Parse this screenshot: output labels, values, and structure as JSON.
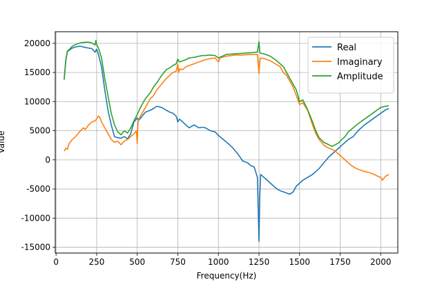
{
  "chart_data": {
    "type": "line",
    "title": "",
    "xlabel": "Frequency(Hz)",
    "ylabel": "Value",
    "xlim": [
      -5,
      2105
    ],
    "ylim": [
      -16000,
      22000
    ],
    "xticks": [
      0,
      250,
      500,
      750,
      1000,
      1250,
      1500,
      1750,
      2000
    ],
    "yticks": [
      -15000,
      -10000,
      -5000,
      0,
      5000,
      10000,
      15000,
      20000
    ],
    "grid": true,
    "legend": "top-right",
    "series": [
      {
        "name": "Real",
        "color": "#1f77b4",
        "x": [
          50,
          60,
          70,
          80,
          100,
          120,
          150,
          180,
          200,
          220,
          240,
          250,
          260,
          280,
          300,
          320,
          340,
          360,
          380,
          400,
          420,
          440,
          460,
          480,
          495,
          500,
          510,
          530,
          550,
          580,
          600,
          620,
          650,
          680,
          700,
          720,
          740,
          750,
          760,
          780,
          800,
          820,
          850,
          880,
          900,
          920,
          950,
          980,
          1000,
          1030,
          1060,
          1090,
          1120,
          1150,
          1180,
          1200,
          1220,
          1240,
          1250,
          1255,
          1260,
          1280,
          1300,
          1320,
          1340,
          1360,
          1380,
          1400,
          1420,
          1440,
          1460,
          1480,
          1500,
          1520,
          1550,
          1580,
          1600,
          1620,
          1650,
          1680,
          1700,
          1720,
          1740,
          1760,
          1780,
          1800,
          1830,
          1860,
          1900,
          1950,
          2000,
          2030,
          2050
        ],
        "y": [
          13800,
          17000,
          18600,
          18800,
          19200,
          19400,
          19500,
          19300,
          19200,
          19100,
          18500,
          19000,
          18200,
          16000,
          12000,
          8500,
          6000,
          4000,
          3800,
          3700,
          4000,
          3600,
          4500,
          6500,
          7000,
          7200,
          6800,
          7500,
          8200,
          8500,
          8800,
          9200,
          9000,
          8500,
          8200,
          8000,
          7500,
          6500,
          7000,
          6500,
          6000,
          5500,
          6000,
          5500,
          5600,
          5500,
          5000,
          4800,
          4200,
          3500,
          2800,
          2000,
          1000,
          -200,
          -500,
          -1000,
          -1200,
          -3000,
          -14000,
          -6000,
          -2500,
          -3000,
          -3500,
          -4000,
          -4500,
          -5000,
          -5300,
          -5500,
          -5700,
          -5900,
          -5500,
          -4500,
          -4000,
          -3500,
          -3000,
          -2500,
          -2000,
          -1500,
          -500,
          500,
          1000,
          1500,
          2000,
          2500,
          3000,
          3500,
          4000,
          5000,
          6000,
          7000,
          8000,
          8600,
          8800
        ]
      },
      {
        "name": "Imaginary",
        "color": "#ff7f0e",
        "x": [
          50,
          60,
          70,
          80,
          100,
          120,
          150,
          170,
          180,
          200,
          220,
          240,
          250,
          260,
          270,
          280,
          300,
          320,
          340,
          360,
          380,
          400,
          420,
          440,
          460,
          480,
          490,
          495,
          500,
          505,
          510,
          520,
          550,
          580,
          600,
          620,
          650,
          680,
          700,
          720,
          740,
          750,
          755,
          760,
          780,
          800,
          820,
          850,
          880,
          900,
          920,
          950,
          980,
          1000,
          1010,
          1020,
          1050,
          1080,
          1100,
          1150,
          1200,
          1240,
          1250,
          1255,
          1260,
          1280,
          1300,
          1320,
          1350,
          1380,
          1400,
          1420,
          1440,
          1460,
          1480,
          1500,
          1520,
          1550,
          1580,
          1600,
          1620,
          1650,
          1680,
          1700,
          1720,
          1740,
          1760,
          1780,
          1800,
          1820,
          1850,
          1880,
          1900,
          1930,
          1960,
          1980,
          2000,
          2010,
          2030,
          2050
        ],
        "y": [
          1500,
          2000,
          1800,
          2800,
          3500,
          4000,
          5000,
          5500,
          5200,
          6000,
          6500,
          6700,
          7000,
          7500,
          7300,
          6500,
          5500,
          4500,
          3500,
          3000,
          3200,
          2600,
          3200,
          3500,
          4000,
          4500,
          4800,
          5000,
          2800,
          6500,
          7000,
          7500,
          9000,
          10500,
          11000,
          12000,
          13000,
          14000,
          14500,
          15000,
          15200,
          16500,
          15000,
          15600,
          15500,
          16000,
          16200,
          16500,
          16800,
          17000,
          17200,
          17400,
          17500,
          16800,
          17500,
          17600,
          17800,
          17900,
          18000,
          18000,
          18100,
          18100,
          14800,
          17000,
          17500,
          17400,
          17200,
          17000,
          16500,
          16000,
          15000,
          14500,
          13500,
          12500,
          11000,
          9500,
          9800,
          8500,
          6000,
          4500,
          3500,
          2500,
          2000,
          1800,
          1500,
          1000,
          500,
          0,
          -500,
          -1000,
          -1500,
          -1800,
          -2000,
          -2200,
          -2500,
          -2800,
          -3000,
          -3500,
          -2800,
          -2500
        ]
      },
      {
        "name": "Amplitude",
        "color": "#2ca02c",
        "x": [
          50,
          60,
          70,
          80,
          100,
          120,
          150,
          180,
          200,
          220,
          240,
          245,
          250,
          255,
          260,
          280,
          300,
          320,
          340,
          360,
          380,
          400,
          420,
          440,
          460,
          480,
          500,
          520,
          550,
          580,
          600,
          620,
          650,
          680,
          700,
          720,
          740,
          750,
          760,
          780,
          800,
          820,
          850,
          880,
          900,
          920,
          950,
          980,
          1000,
          1050,
          1100,
          1150,
          1200,
          1240,
          1250,
          1255,
          1260,
          1280,
          1300,
          1320,
          1350,
          1380,
          1400,
          1420,
          1440,
          1460,
          1480,
          1500,
          1520,
          1550,
          1580,
          1600,
          1620,
          1650,
          1680,
          1700,
          1720,
          1740,
          1760,
          1780,
          1800,
          1830,
          1860,
          1900,
          1950,
          2000,
          2030,
          2050
        ],
        "y": [
          13800,
          17200,
          18700,
          18900,
          19500,
          19800,
          20100,
          20200,
          20200,
          20100,
          19700,
          20500,
          19800,
          19500,
          19300,
          17500,
          14000,
          11000,
          8000,
          6000,
          4800,
          4300,
          5000,
          4600,
          5500,
          6700,
          7800,
          9000,
          10500,
          11500,
          12500,
          13200,
          14500,
          15500,
          15800,
          16200,
          16500,
          17300,
          16800,
          17000,
          17200,
          17500,
          17600,
          17800,
          17900,
          17900,
          18000,
          17900,
          17500,
          18100,
          18200,
          18300,
          18400,
          18500,
          20300,
          18500,
          18300,
          18200,
          18000,
          17800,
          17200,
          16500,
          16000,
          15000,
          14000,
          13000,
          12000,
          10000,
          10300,
          8600,
          6500,
          5000,
          3800,
          3000,
          2600,
          2300,
          2600,
          2900,
          3500,
          4000,
          4800,
          5500,
          6200,
          7000,
          8000,
          9000,
          9200,
          9300
        ]
      }
    ]
  }
}
